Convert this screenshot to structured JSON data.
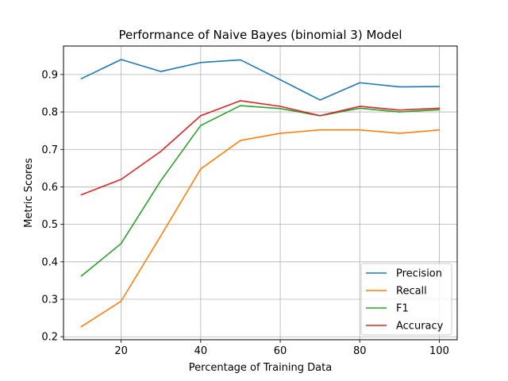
{
  "chart_data": {
    "type": "line",
    "title": "Performance of Naive Bayes (binomial 3) Model",
    "xlabel": "Percentage of Training Data",
    "ylabel": "Metric Scores",
    "x": [
      10,
      20,
      30,
      40,
      50,
      60,
      70,
      80,
      90,
      100
    ],
    "xlim": [
      5.5,
      104.5
    ],
    "ylim": [
      0.192,
      0.976
    ],
    "xticks": [
      20,
      40,
      60,
      80,
      100
    ],
    "yticks": [
      0.2,
      0.3,
      0.4,
      0.5,
      0.6,
      0.7,
      0.8,
      0.9
    ],
    "grid": true,
    "legend_position": "lower-right",
    "series": [
      {
        "name": "Precision",
        "color": "#1f77b4",
        "values": [
          0.889,
          0.94,
          0.908,
          0.932,
          0.939,
          0.886,
          0.832,
          0.878,
          0.867,
          0.868
        ]
      },
      {
        "name": "Recall",
        "color": "#ff7f0e",
        "values": [
          0.227,
          0.295,
          0.47,
          0.648,
          0.724,
          0.743,
          0.752,
          0.752,
          0.743,
          0.752
        ]
      },
      {
        "name": "F1",
        "color": "#2ca02c",
        "values": [
          0.362,
          0.449,
          0.617,
          0.764,
          0.817,
          0.809,
          0.79,
          0.81,
          0.8,
          0.806
        ]
      },
      {
        "name": "Accuracy",
        "color": "#d62728",
        "values": [
          0.579,
          0.62,
          0.695,
          0.79,
          0.83,
          0.815,
          0.79,
          0.815,
          0.805,
          0.81
        ]
      }
    ]
  }
}
